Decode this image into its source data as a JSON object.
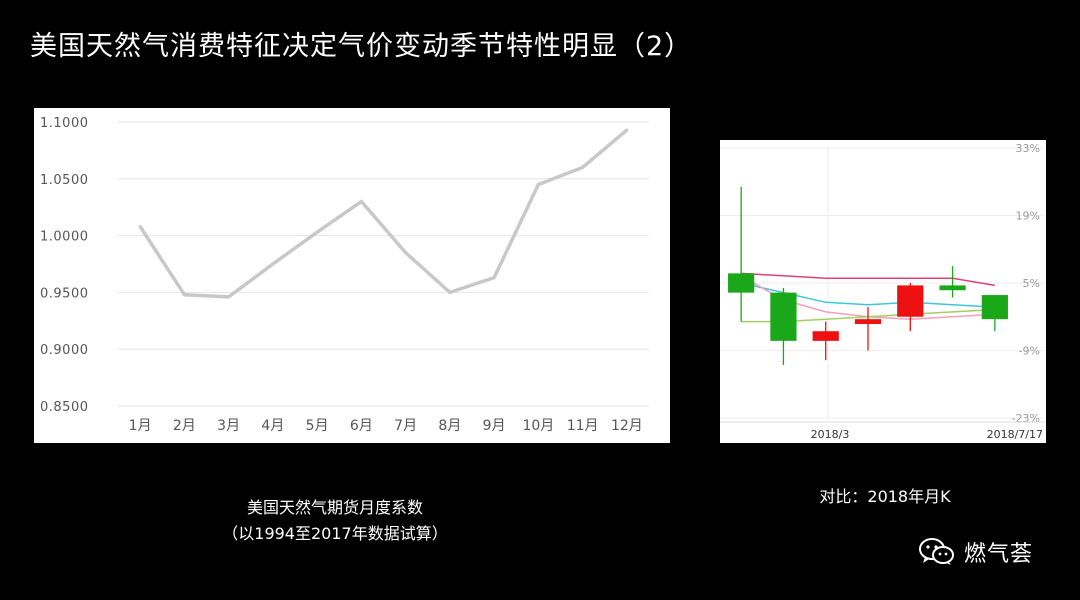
{
  "title": "美国天然气消费特征决定气价变动季节特性明显（2）",
  "left_caption": {
    "line1": "美国天然气期货月度系数",
    "line2": "（以1994至2017年数据试算）"
  },
  "right_caption": "对比：2018年月K",
  "brand": {
    "name": "燃气荟",
    "icon": "wechat-icon"
  },
  "chart_data": [
    {
      "type": "line",
      "x": [
        "1月",
        "2月",
        "3月",
        "4月",
        "5月",
        "6月",
        "7月",
        "8月",
        "9月",
        "10月",
        "11月",
        "12月"
      ],
      "series": [
        {
          "values": [
            1.008,
            0.948,
            0.946,
            0.975,
            1.003,
            1.03,
            0.985,
            0.95,
            0.963,
            1.045,
            1.06,
            1.093
          ]
        }
      ],
      "yticks": [
        "1.1000",
        "1.0500",
        "1.0000",
        "0.9500",
        "0.9000",
        "0.8500"
      ],
      "ylim": [
        0.85,
        1.1
      ],
      "color": "#c8c8cc",
      "grid": true
    },
    {
      "type": "candlestick",
      "x_labels": [
        "2018/3",
        "2018/7/17"
      ],
      "yticks": [
        "33%",
        "19%",
        "5%",
        "-9%",
        "-23%"
      ],
      "ylim": [
        -23,
        33
      ],
      "candles": [
        {
          "open": 7.0,
          "high": 25.0,
          "low": -3.0,
          "close": 3.0,
          "color": "#1aa81a"
        },
        {
          "open": 3.0,
          "high": 4.0,
          "low": -12.0,
          "close": -7.0,
          "color": "#1aa81a"
        },
        {
          "open": -5.0,
          "high": -3.0,
          "low": -11.0,
          "close": -7.0,
          "color": "#ee1111"
        },
        {
          "open": -3.5,
          "high": 0.0,
          "low": -9.0,
          "close": -2.5,
          "color": "#ee1111"
        },
        {
          "open": -2.0,
          "high": 5.0,
          "low": -5.0,
          "close": 4.5,
          "color": "#ee1111"
        },
        {
          "open": 4.5,
          "high": 8.5,
          "low": 2.0,
          "close": 3.5,
          "color": "#1aa81a"
        },
        {
          "open": 2.5,
          "high": 2.5,
          "low": -5.0,
          "close": -2.5,
          "color": "#1aa81a"
        }
      ],
      "ma_lines": [
        {
          "color": "#e0407a",
          "values": [
            7.0,
            6.5,
            6.0,
            6.0,
            6.0,
            6.0,
            4.5
          ]
        },
        {
          "color": "#3cc8d8",
          "values": [
            5.0,
            3.0,
            1.0,
            0.5,
            1.0,
            0.5,
            0.0
          ]
        },
        {
          "color": "#f4a0b8",
          "values": [
            6.5,
            1.5,
            -1.0,
            -2.0,
            -2.5,
            -2.0,
            -1.5
          ]
        },
        {
          "color": "#a0d060",
          "values": [
            -3.0,
            -3.0,
            -2.5,
            -2.0,
            -1.5,
            -1.0,
            -0.5
          ]
        }
      ]
    }
  ]
}
